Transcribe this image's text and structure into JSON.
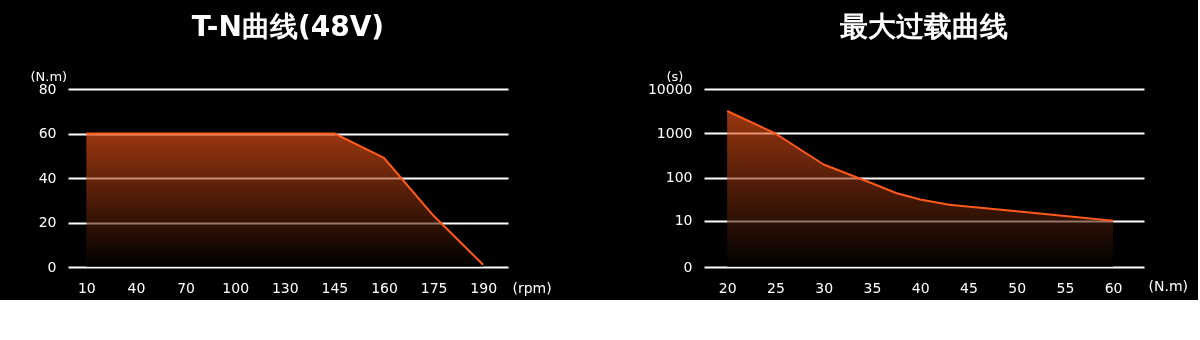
{
  "chart_data": [
    {
      "type": "area",
      "title": "T-N曲线(48V)",
      "xlabel": "(rpm)",
      "ylabel": "(N.m)",
      "categories": [
        "10",
        "40",
        "70",
        "100",
        "130",
        "145",
        "160",
        "175",
        "190"
      ],
      "series": [
        {
          "color": "#ff5a1a",
          "values": [
            60,
            60,
            60,
            60,
            60,
            60,
            49,
            23,
            1
          ]
        }
      ],
      "ylim": [
        0,
        80
      ],
      "yticks": [
        0,
        20,
        40,
        60,
        80
      ],
      "grid": "y"
    },
    {
      "type": "area",
      "title": "最大过载曲线",
      "xlabel": "(N.m)",
      "ylabel": "(s)",
      "log": "y",
      "series": [
        {
          "color": "#ff5a1a",
          "x": [
            20,
            25,
            30,
            35,
            37.5,
            40,
            43,
            50,
            55,
            60
          ],
          "values": [
            3200,
            1000,
            200,
            75,
            45,
            32,
            24,
            17,
            13,
            10
          ]
        }
      ],
      "xlim": [
        20,
        60
      ],
      "xticks": [
        20,
        25,
        30,
        35,
        40,
        45,
        50,
        55,
        60
      ],
      "ylim": [
        0,
        10000
      ],
      "yticks": [
        0,
        10,
        100,
        1000,
        10000
      ],
      "grid": "y"
    }
  ]
}
